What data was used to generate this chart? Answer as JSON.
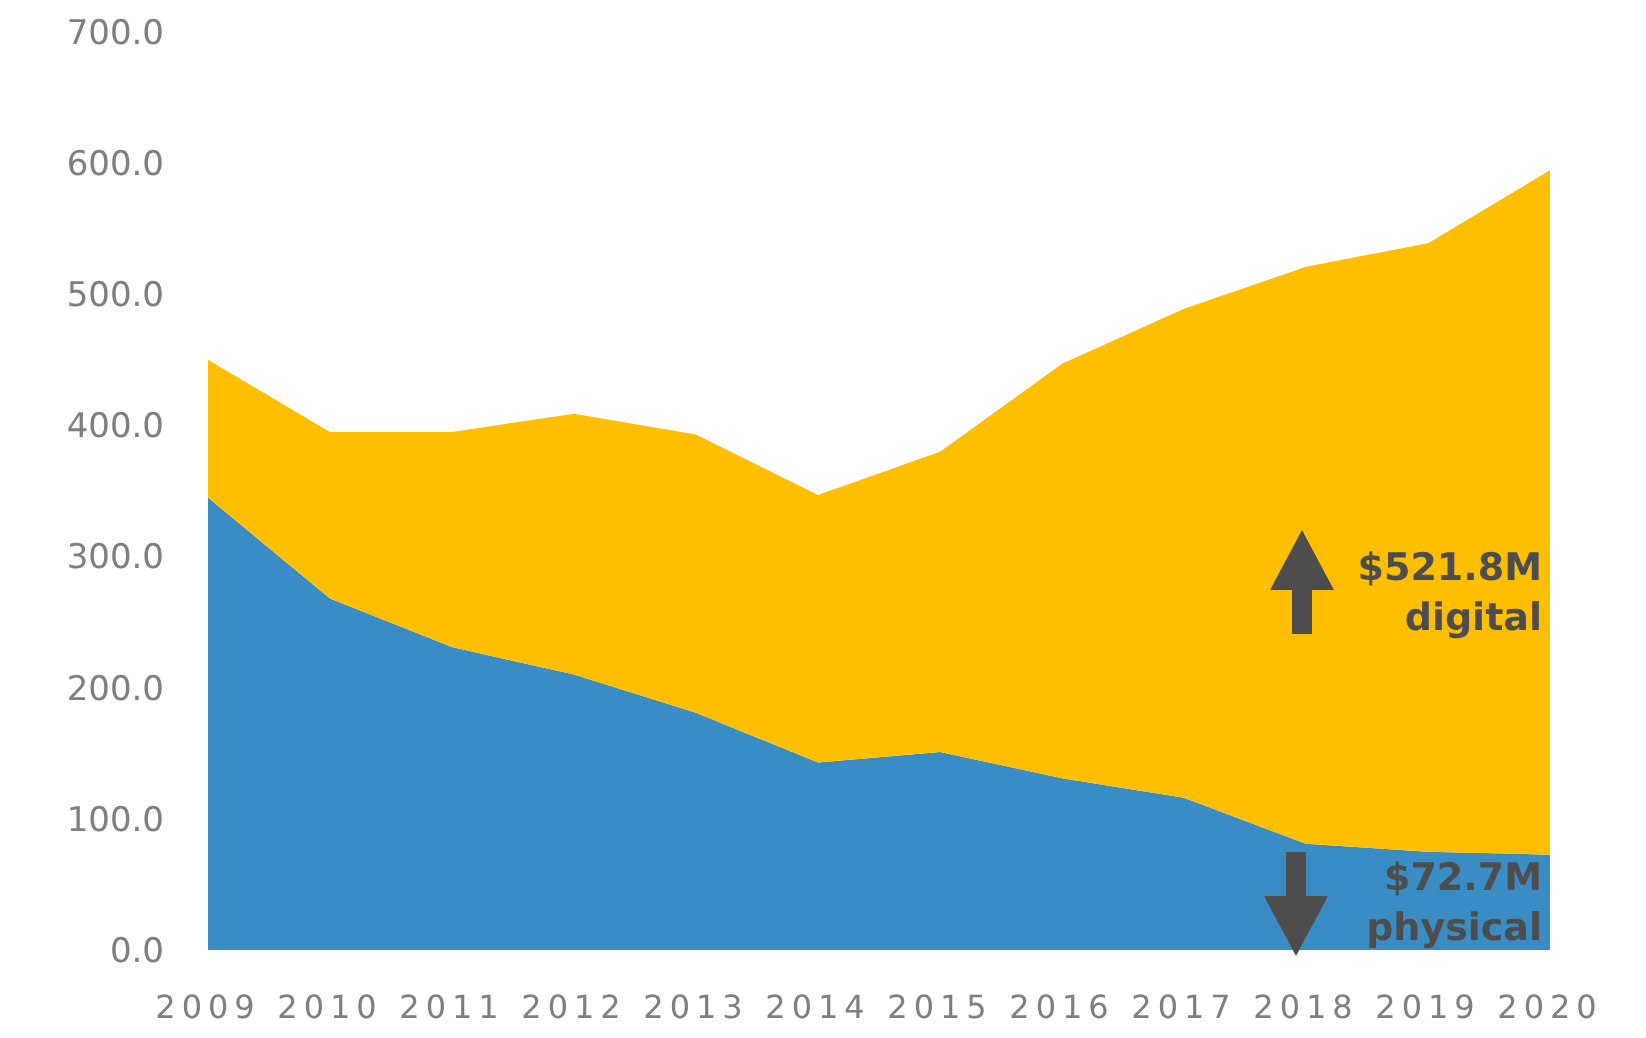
{
  "chart_data": {
    "type": "area",
    "stacked": true,
    "categories": [
      "2009",
      "2010",
      "2011",
      "2012",
      "2013",
      "2014",
      "2015",
      "2016",
      "2017",
      "2018",
      "2019",
      "2020"
    ],
    "series": [
      {
        "color": "#3a8cc4",
        "values": [
          345,
          268,
          231,
          210,
          181,
          143,
          151,
          131,
          116,
          81,
          75,
          72.7
        ]
      },
      {
        "color": "#fdbf00",
        "values": [
          105,
          127,
          164,
          199,
          212,
          204,
          229,
          316,
          373,
          440,
          464,
          521.8
        ]
      }
    ],
    "ylim": [
      0,
      700
    ],
    "yticks": [
      {
        "value": 0,
        "label": "0.0"
      },
      {
        "value": 100,
        "label": "100.0"
      },
      {
        "value": 200,
        "label": "200.0"
      },
      {
        "value": 300,
        "label": "300.0"
      },
      {
        "value": 400,
        "label": "400.0"
      },
      {
        "value": 500,
        "label": "500.0"
      },
      {
        "value": 600,
        "label": "600.0"
      },
      {
        "value": 700,
        "label": "700.0"
      }
    ],
    "annotations": [
      "$521.8M digital",
      "$72.7M physical"
    ]
  }
}
